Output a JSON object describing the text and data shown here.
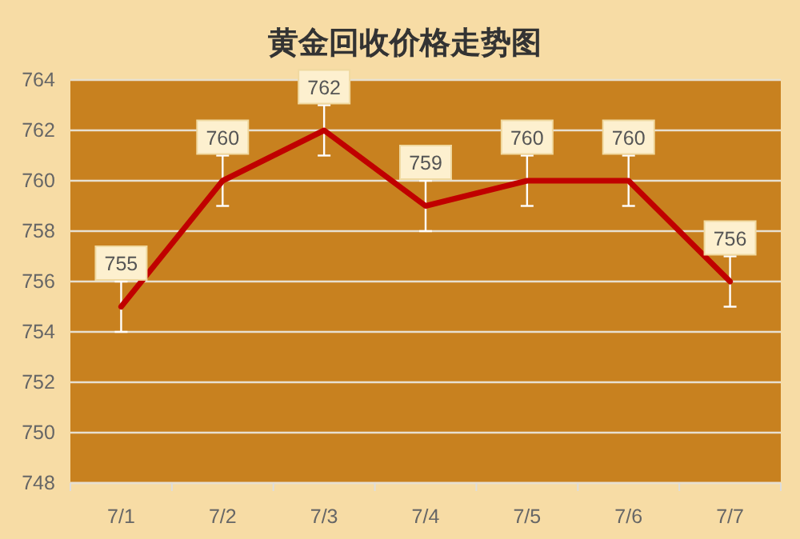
{
  "chart_data": {
    "type": "line",
    "title": "黄金回收价格走势图",
    "categories": [
      "7/1",
      "7/2",
      "7/3",
      "7/4",
      "7/5",
      "7/6",
      "7/7"
    ],
    "series": [
      {
        "color": "#c00000",
        "values": [
          755,
          760,
          762,
          759,
          760,
          760,
          756
        ],
        "errors": [
          1,
          1,
          1,
          1,
          1,
          1,
          1
        ]
      }
    ],
    "ylim": [
      748,
      764
    ],
    "yticks": [
      748,
      750,
      752,
      754,
      756,
      758,
      760,
      762,
      764
    ],
    "grid": "y",
    "data_labels": true,
    "marker": "none",
    "line_style": "solid"
  }
}
